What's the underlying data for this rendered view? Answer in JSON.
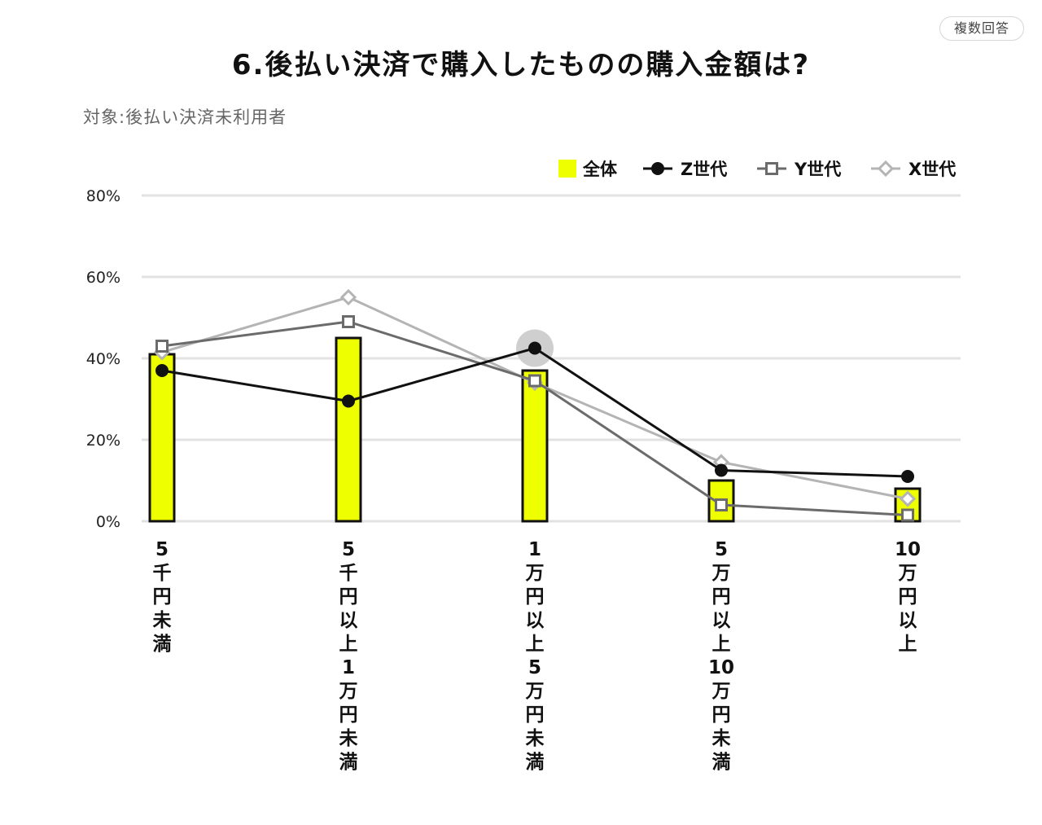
{
  "badge": "複数回答",
  "title": "6.後払い決済で購入したものの購入金額は?",
  "subtitle": "対象:後払い決済未利用者",
  "colors": {
    "bar": "#eeff00",
    "z": "#111111",
    "y": "#6b6b6b",
    "x": "#b4b4b4",
    "grid": "#e2e2e2"
  },
  "chart_data": {
    "type": "bar",
    "title": "6.後払い決済で購入したものの購入金額は?",
    "ylim": [
      0,
      80
    ],
    "yticks": [
      "0%",
      "20%",
      "40%",
      "60%",
      "80%"
    ],
    "categories": [
      "5千円未満",
      "5千円以上1万円未満",
      "1万円以上5万円未満",
      "5万円以上10万円未満",
      "10万円以上"
    ],
    "series": [
      {
        "name": "全体",
        "kind": "bar",
        "values": [
          41,
          45,
          37,
          10,
          8
        ]
      },
      {
        "name": "Z世代",
        "kind": "line",
        "values": [
          37,
          29.5,
          42.5,
          12.5,
          11
        ]
      },
      {
        "name": "Y世代",
        "kind": "line",
        "values": [
          43,
          49,
          34.5,
          4,
          1.5
        ]
      },
      {
        "name": "X世代",
        "kind": "line",
        "values": [
          41.5,
          55,
          34,
          14.5,
          5.5
        ]
      }
    ],
    "grid": true,
    "legend": "top-right"
  }
}
